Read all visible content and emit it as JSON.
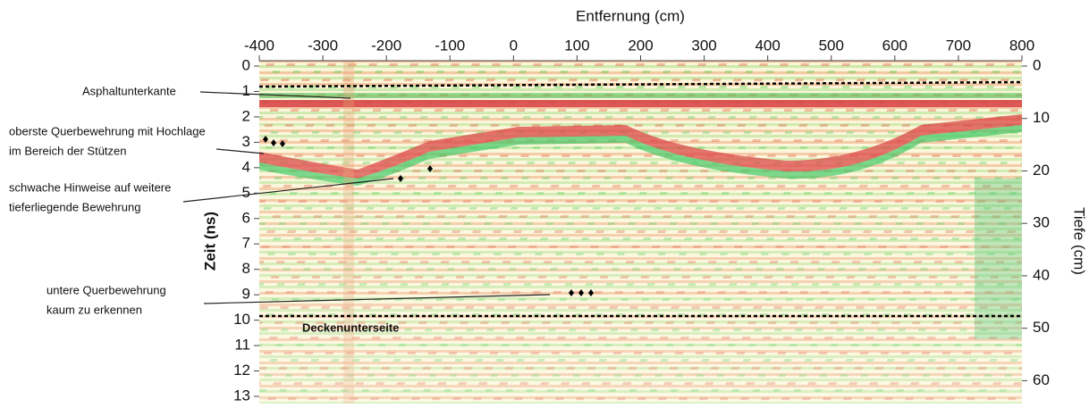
{
  "chart_data": {
    "type": "radargram",
    "x_label": "Entfernung (cm)",
    "y_label": "Zeit (ns)",
    "y2_label": "Tiefe (cm)",
    "xlim": [
      -400,
      800
    ],
    "xticks": [
      -400,
      -300,
      -200,
      -100,
      0,
      100,
      200,
      300,
      400,
      500,
      600,
      700,
      800
    ],
    "ylim": [
      0,
      13
    ],
    "yticks": [
      0,
      1,
      2,
      3,
      4,
      5,
      6,
      7,
      8,
      9,
      10,
      11,
      12,
      13
    ],
    "y2lim": [
      0,
      63
    ],
    "y2ticks": [
      0,
      10,
      20,
      30,
      40,
      50,
      60
    ],
    "annotations": {
      "asphalt": [
        "Asphaltunterkante"
      ],
      "oberste": [
        "oberste Querbewehrung mit Hochlage",
        "im Bereich der Stützen"
      ],
      "schwache": [
        "schwache Hinweise auf weitere",
        "tieferliegende Bewehrung"
      ],
      "untere": [
        "untere Querbewehrung",
        "kaum zu erkennen"
      ],
      "decke": [
        "Deckenunterseite"
      ]
    }
  }
}
